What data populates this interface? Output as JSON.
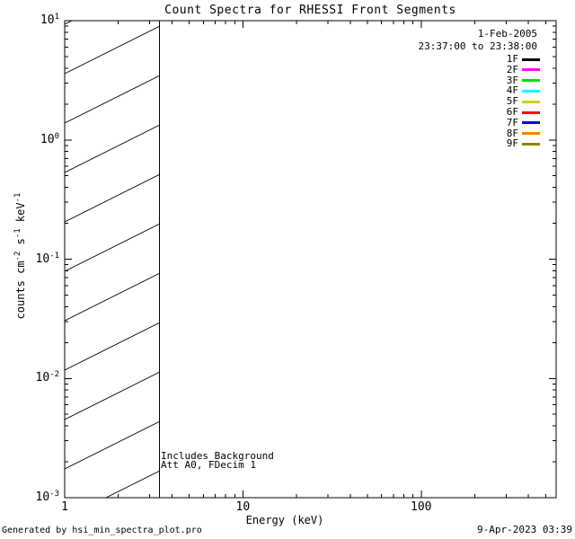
{
  "chart_data": {
    "type": "line",
    "title": "Count Spectra for RHESSI Front Segments",
    "xlabel": "Energy (keV)",
    "ylabel_segments": [
      {
        "text": "counts cm",
        "sup": false
      },
      {
        "text": "-2",
        "sup": true
      },
      {
        "text": " s",
        "sup": false
      },
      {
        "text": "-1",
        "sup": true
      },
      {
        "text": " keV",
        "sup": false
      },
      {
        "text": "-1",
        "sup": true
      }
    ],
    "x_scale": "log",
    "y_scale": "log",
    "xlim": [
      1,
      572
    ],
    "ylim": [
      0.001,
      10
    ],
    "x_major_ticks": [
      1,
      10,
      100
    ],
    "x_major_tick_labels": [
      "1",
      "10",
      "100"
    ],
    "y_major_tick_base": "10",
    "y_major_tick_exponents": [
      "1",
      "0",
      "-1",
      "-2",
      "-3"
    ],
    "grid": false,
    "series": [],
    "hatched_region": {
      "x_start": 1.0,
      "x_end": 3.4,
      "style": "diagonal-hatch"
    },
    "annotations": [
      {
        "text": "Includes_Background"
      },
      {
        "text": "Att A0, FDecim 1"
      }
    ],
    "legend": {
      "position": "top-right",
      "date": "1-Feb-2005",
      "time_range": "23:37:00 to 23:38:00",
      "entries": [
        {
          "label": "1F",
          "color": "#000000"
        },
        {
          "label": "2F",
          "color": "#ff00ff"
        },
        {
          "label": "3F",
          "color": "#00e000"
        },
        {
          "label": "4F",
          "color": "#00ffff"
        },
        {
          "label": "5F",
          "color": "#d0d000"
        },
        {
          "label": "6F",
          "color": "#ff0000"
        },
        {
          "label": "7F",
          "color": "#0000ff"
        },
        {
          "label": "8F",
          "color": "#ff8000"
        },
        {
          "label": "9F",
          "color": "#888800"
        }
      ]
    }
  },
  "footer": {
    "left": "Generated by hsi_min_spectra_plot.pro",
    "right": "9-Apr-2023 03:39"
  }
}
